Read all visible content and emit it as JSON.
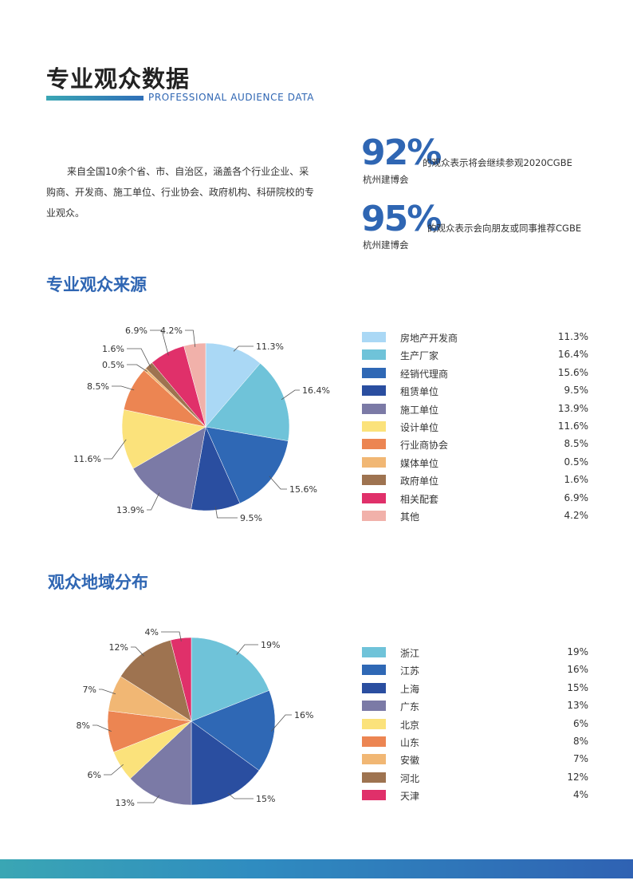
{
  "header": {
    "title": "专业观众数据",
    "subtitle": "PROFESSIONAL AUDIENCE DATA"
  },
  "intro": "来自全国10余个省、市、自治区，涵盖各个行业企业、采购商、开发商、施工单位、行业协会、政府机构、科研院校的专业观众。",
  "stats": [
    {
      "number": "92%",
      "line1": "的观众表示将会继续参观2020CGBE",
      "line2": "杭州建博会"
    },
    {
      "number": "95%",
      "line1": "的观众表示会向朋友或同事推荐CGBE",
      "line2": "杭州建博会"
    }
  ],
  "colors": {
    "accent": "#2f66b3",
    "rule": "#3aa6b4"
  },
  "chart_data": [
    {
      "type": "pie",
      "title": "专业观众来源",
      "categories": [
        "房地产开发商",
        "生产厂家",
        "经销代理商",
        "租赁单位",
        "施工单位",
        "设计单位",
        "行业商协会",
        "媒体单位",
        "政府单位",
        "相关配套",
        "其他"
      ],
      "values": [
        11.3,
        16.4,
        15.6,
        9.5,
        13.9,
        11.6,
        8.5,
        0.5,
        1.6,
        6.9,
        4.2
      ],
      "labels": [
        "11.3%",
        "16.4%",
        "15.6%",
        "9.5%",
        "13.9%",
        "11.6%",
        "8.5%",
        "0.5%",
        "1.6%",
        "6.9%",
        "4.2%"
      ],
      "colors": [
        "#aad8f5",
        "#6fc3d9",
        "#2f68b5",
        "#2a4ea0",
        "#7b7aa6",
        "#fbe27b",
        "#ec8552",
        "#f1b774",
        "#9e7350",
        "#e0306a",
        "#f1b1aa"
      ],
      "legend": "right"
    },
    {
      "type": "pie",
      "title": "观众地域分布",
      "categories": [
        "浙江",
        "江苏",
        "上海",
        "广东",
        "北京",
        "山东",
        "安徽",
        "河北",
        "天津"
      ],
      "values": [
        19,
        16,
        15,
        13,
        6,
        8,
        7,
        12,
        4
      ],
      "labels": [
        "19%",
        "16%",
        "15%",
        "13%",
        "6%",
        "8%",
        "7%",
        "12%",
        "4%"
      ],
      "colors": [
        "#6fc3d9",
        "#2f68b5",
        "#2a4ea0",
        "#7b7aa6",
        "#fbe27b",
        "#ec8552",
        "#f1b774",
        "#9e7350",
        "#e0306a"
      ],
      "legend": "right"
    }
  ]
}
